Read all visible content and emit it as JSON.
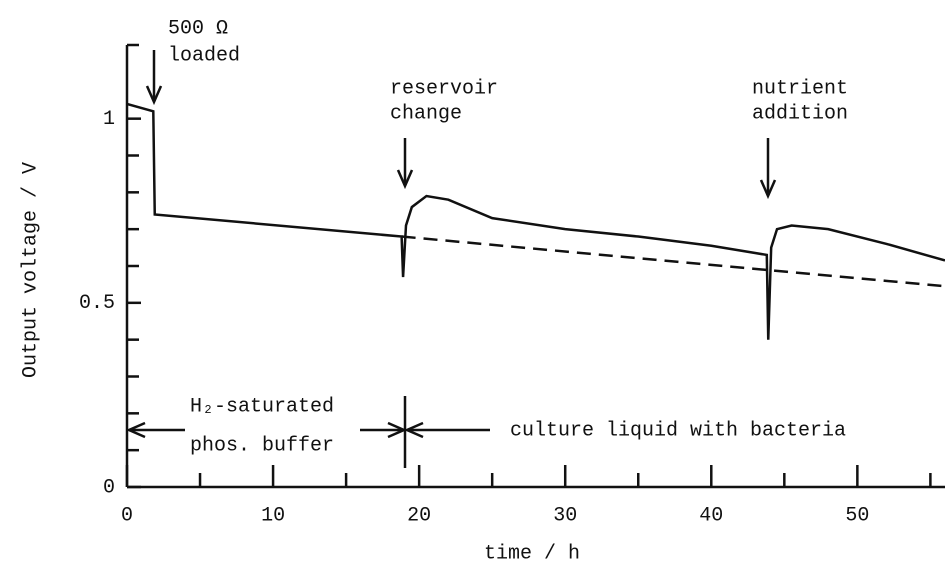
{
  "chart_data": {
    "type": "line",
    "x_label": "time / h",
    "y_label": "Output voltage / V",
    "xlim": [
      0,
      56
    ],
    "ylim": [
      0,
      1.2
    ],
    "xticks": [
      0,
      10,
      20,
      30,
      40,
      50
    ],
    "xminor_ticks": [
      5,
      15,
      25,
      35,
      45,
      55
    ],
    "yticks": [
      0,
      0.5,
      1
    ],
    "yminor_ticks": [
      0.1,
      0.2,
      0.3,
      0.4,
      0.6,
      0.7,
      0.8,
      0.9,
      1.2
    ],
    "series": [
      {
        "color": "#111111",
        "dash": false,
        "x": [
          0,
          1.8,
          1.9,
          18.8,
          18.9,
          19.1,
          19.5,
          20.5,
          22,
          25,
          30,
          35,
          40,
          43.8,
          43.9,
          44.1,
          44.5,
          45.5,
          48,
          52,
          56
        ],
        "values": [
          1.04,
          1.02,
          0.74,
          0.68,
          0.57,
          0.71,
          0.76,
          0.79,
          0.78,
          0.73,
          0.7,
          0.68,
          0.655,
          0.63,
          0.4,
          0.65,
          0.7,
          0.71,
          0.7,
          0.66,
          0.615
        ]
      },
      {
        "color": "#111111",
        "dash": true,
        "x": [
          18.8,
          56
        ],
        "values": [
          0.68,
          0.545
        ]
      }
    ],
    "annotations": {
      "load": [
        "500 Ω",
        "loaded"
      ],
      "reservoir": [
        "reservoir",
        "change"
      ],
      "nutrient": [
        "nutrient",
        "addition"
      ],
      "buffer": [
        "H₂-saturated",
        "phos. buffer"
      ],
      "culture": "culture liquid with bacteria"
    }
  }
}
